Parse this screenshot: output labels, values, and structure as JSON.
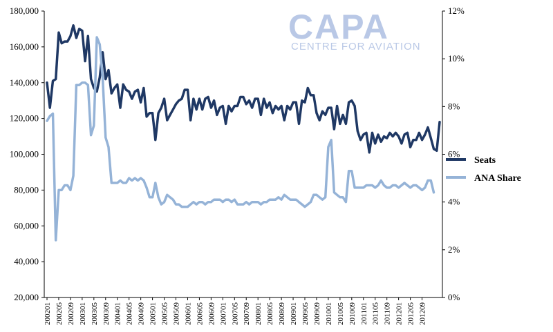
{
  "logo": {
    "main": "CAPA",
    "sub": "CENTRE FOR AVIATION"
  },
  "chart_data": {
    "type": "line",
    "y_left": {
      "ticks": [
        "20,000",
        "40,000",
        "60,000",
        "80,000",
        "100,000",
        "120,000",
        "140,000",
        "160,000",
        "180,000"
      ],
      "min": 20000,
      "max": 180000
    },
    "y_right": {
      "ticks": [
        "0%",
        "2%",
        "4%",
        "6%",
        "8%",
        "10%",
        "12%"
      ],
      "min": 0,
      "max": 12
    },
    "x_tick_labels": [
      "200201",
      "200205",
      "200209",
      "200301",
      "200305",
      "200309",
      "200401",
      "200405",
      "200409",
      "200501",
      "200505",
      "200509",
      "200601",
      "200605",
      "200609",
      "200701",
      "200705",
      "200709",
      "200801",
      "200805",
      "200809",
      "200901",
      "200905",
      "200909",
      "201001",
      "201005",
      "201009",
      "201101",
      "201105",
      "201109",
      "201201",
      "201205",
      "201209"
    ],
    "series": [
      {
        "name": "Seats",
        "axis": "left",
        "color": "#1f3864",
        "values": [
          140000,
          126000,
          141000,
          142000,
          168000,
          162000,
          163000,
          163000,
          166000,
          172000,
          165000,
          170000,
          169000,
          152000,
          166000,
          142000,
          137000,
          135000,
          143000,
          157000,
          142000,
          147000,
          134000,
          137000,
          139000,
          126000,
          139000,
          136000,
          135000,
          131000,
          135000,
          136000,
          129000,
          137000,
          121000,
          123000,
          123000,
          108000,
          123000,
          126000,
          131000,
          119000,
          122000,
          125000,
          128000,
          130000,
          131000,
          136000,
          136000,
          119000,
          131000,
          125000,
          131000,
          125000,
          131000,
          132000,
          126000,
          130000,
          122000,
          126000,
          127000,
          117000,
          127000,
          124000,
          127000,
          127000,
          132000,
          132000,
          128000,
          130000,
          126000,
          131000,
          131000,
          122000,
          131000,
          126000,
          129000,
          123000,
          127000,
          125000,
          127000,
          119000,
          127000,
          125000,
          129000,
          129000,
          117000,
          130000,
          129000,
          137000,
          133000,
          133000,
          123000,
          119000,
          124000,
          122000,
          126000,
          126000,
          114000,
          127000,
          117000,
          122000,
          117000,
          129000,
          130000,
          127000,
          113000,
          108000,
          111000,
          112000,
          101000,
          112000,
          106000,
          111000,
          107000,
          110000,
          109000,
          112000,
          110000,
          112000,
          110000,
          106000,
          111000,
          112000,
          104000,
          108000,
          108000,
          112000,
          108000,
          111000,
          115000,
          109000,
          103000,
          102000,
          118000
        ]
      },
      {
        "name": "ANA Share",
        "axis": "right",
        "color": "#95b3d7",
        "values": [
          7.4,
          7.6,
          7.7,
          2.4,
          4.5,
          4.5,
          4.7,
          4.7,
          4.5,
          5.1,
          8.9,
          8.9,
          9.0,
          9.0,
          8.9,
          6.8,
          7.2,
          10.9,
          10.6,
          9.2,
          6.7,
          6.3,
          4.8,
          4.8,
          4.8,
          4.9,
          4.8,
          4.8,
          5.0,
          4.9,
          5.0,
          4.9,
          5.0,
          4.9,
          4.6,
          4.2,
          4.2,
          4.8,
          4.2,
          3.9,
          4.0,
          4.3,
          4.2,
          4.1,
          3.9,
          3.9,
          3.8,
          3.8,
          3.8,
          3.9,
          4.0,
          3.9,
          4.0,
          4.0,
          3.9,
          4.0,
          4.0,
          4.1,
          4.1,
          4.1,
          4.0,
          4.1,
          4.1,
          4.0,
          4.1,
          3.9,
          3.9,
          3.9,
          4.0,
          3.9,
          4.0,
          4.0,
          4.0,
          3.9,
          4.0,
          4.0,
          4.1,
          4.1,
          4.1,
          4.2,
          4.1,
          4.3,
          4.2,
          4.1,
          4.1,
          4.1,
          4.0,
          3.9,
          3.8,
          3.9,
          4.0,
          4.3,
          4.3,
          4.2,
          4.1,
          4.2,
          6.3,
          6.6,
          4.4,
          4.3,
          4.2,
          4.2,
          4.0,
          5.3,
          5.3,
          4.6,
          4.6,
          4.6,
          4.6,
          4.7,
          4.7,
          4.7,
          4.6,
          4.7,
          4.9,
          4.7,
          4.6,
          4.6,
          4.7,
          4.7,
          4.6,
          4.7,
          4.8,
          4.7,
          4.6,
          4.7,
          4.7,
          4.6,
          4.5,
          4.6,
          4.9,
          4.9,
          4.4
        ]
      }
    ],
    "legend_position": "right"
  }
}
